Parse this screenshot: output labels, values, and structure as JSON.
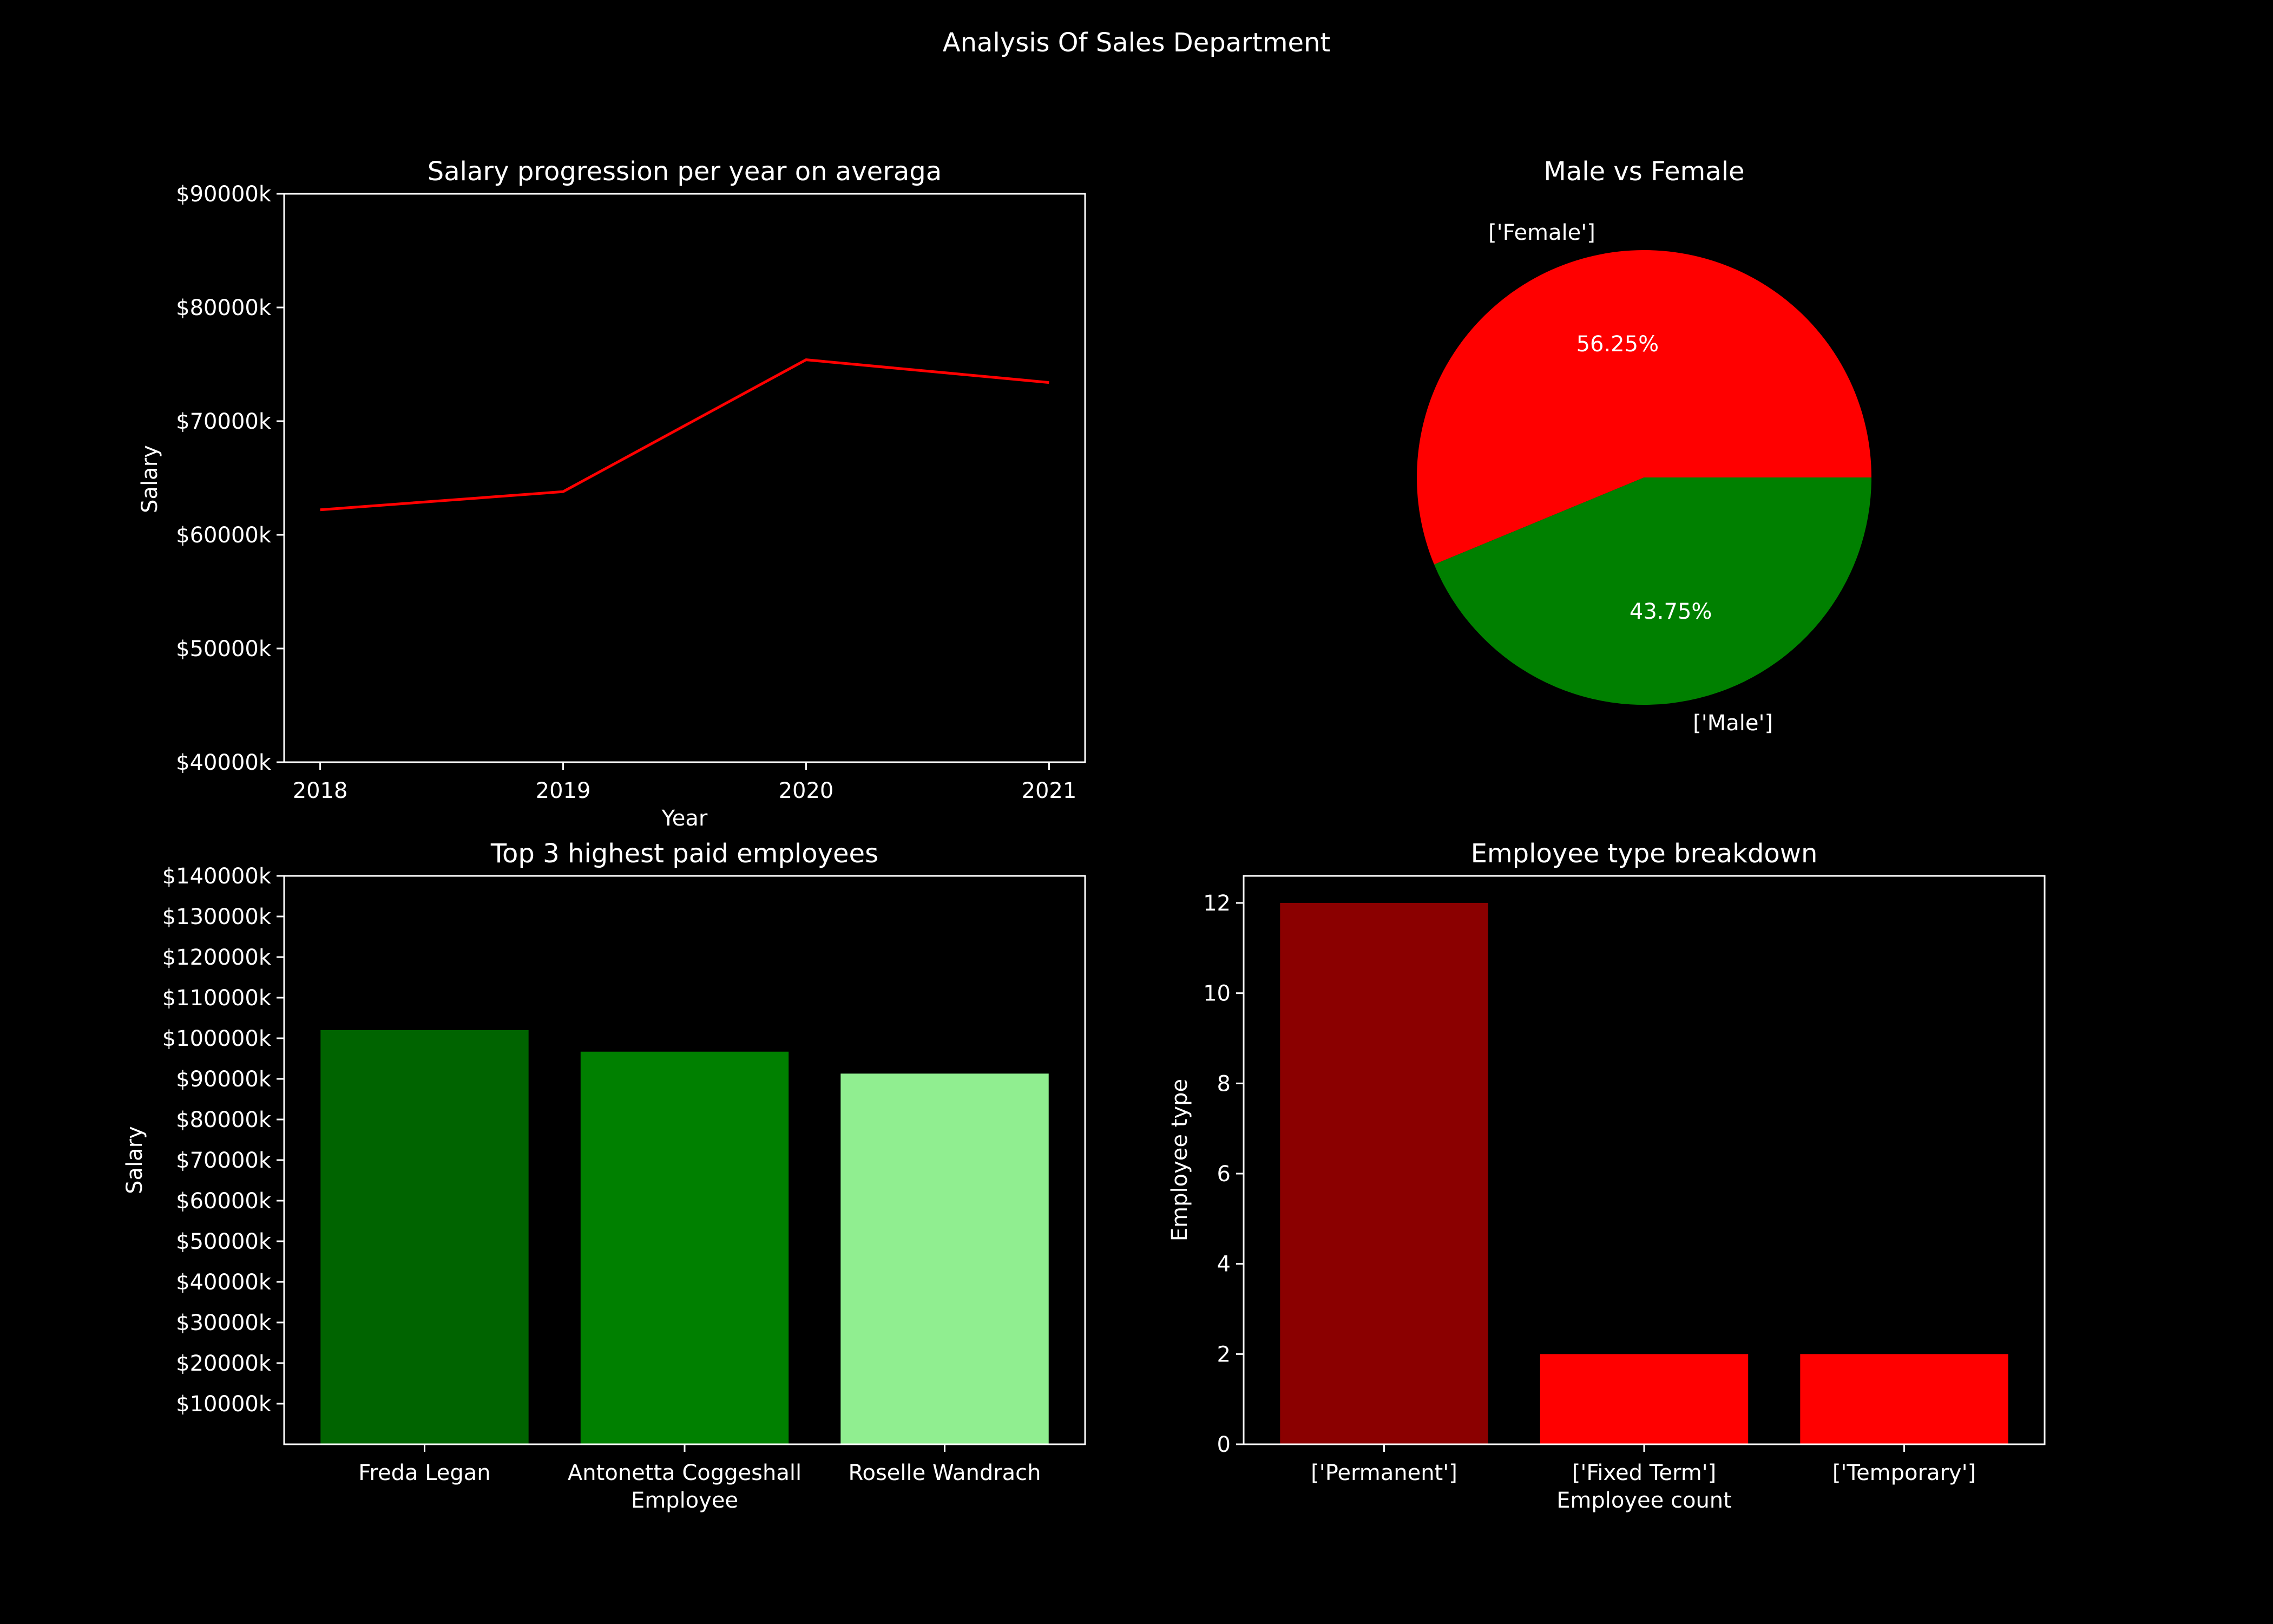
{
  "page": {
    "title": "Analysis Of Sales Department",
    "background": "#000000",
    "text_color": "#ffffff"
  },
  "chart_data": [
    {
      "id": "salary-progression",
      "type": "line",
      "title": "Salary progression per year on averaga",
      "xlabel": "Year",
      "ylabel": "Salary",
      "x": [
        "2018",
        "2019",
        "2020",
        "2021"
      ],
      "series": [
        {
          "color": "#ff0000",
          "values": [
            62200,
            63800,
            75400,
            73400
          ]
        }
      ],
      "ylim": [
        40000,
        90000
      ],
      "yticks": [
        40000,
        50000,
        60000,
        70000,
        80000,
        90000
      ],
      "ytick_labels": [
        "$40000k",
        "$50000k",
        "$60000k",
        "$70000k",
        "$80000k",
        "$90000k"
      ],
      "grid": false
    },
    {
      "id": "gender-split",
      "type": "pie",
      "title": "Male vs Female",
      "slices": [
        {
          "label": "['Female']",
          "value": 56.25,
          "pct_label": "56.25%",
          "color": "#ff0000"
        },
        {
          "label": "['Male']",
          "value": 43.75,
          "pct_label": "43.75%",
          "color": "#008000"
        }
      ]
    },
    {
      "id": "top-paid",
      "type": "bar",
      "title": "Top 3 highest paid employees",
      "xlabel": "Employee",
      "ylabel": "Salary",
      "categories": [
        "Freda Legan",
        "Antonetta  Coggeshall",
        "Roselle Wandrach"
      ],
      "values": [
        102000,
        96700,
        91300
      ],
      "colors": [
        "#006400",
        "#008000",
        "#90ee90"
      ],
      "ylim": [
        0,
        140000
      ],
      "yticks": [
        10000,
        20000,
        30000,
        40000,
        50000,
        60000,
        70000,
        80000,
        90000,
        100000,
        110000,
        120000,
        130000,
        140000
      ],
      "ytick_labels": [
        "$10000k",
        "$20000k",
        "$30000k",
        "$40000k",
        "$50000k",
        "$60000k",
        "$70000k",
        "$80000k",
        "$90000k",
        "$100000k",
        "$110000k",
        "$120000k",
        "$130000k",
        "$140000k"
      ],
      "grid": false
    },
    {
      "id": "employee-type",
      "type": "bar",
      "title": "Employee type breakdown",
      "xlabel": "Employee count",
      "ylabel": "Employee type",
      "categories": [
        "['Permanent']",
        "['Fixed Term']",
        "['Temporary']"
      ],
      "values": [
        12,
        2,
        2
      ],
      "colors": [
        "#8b0000",
        "#ff0000",
        "#ff0000"
      ],
      "ylim": [
        0,
        12.6
      ],
      "yticks": [
        0,
        2,
        4,
        6,
        8,
        10,
        12
      ],
      "ytick_labels": [
        "0",
        "2",
        "4",
        "6",
        "8",
        "10",
        "12"
      ],
      "grid": false
    }
  ]
}
